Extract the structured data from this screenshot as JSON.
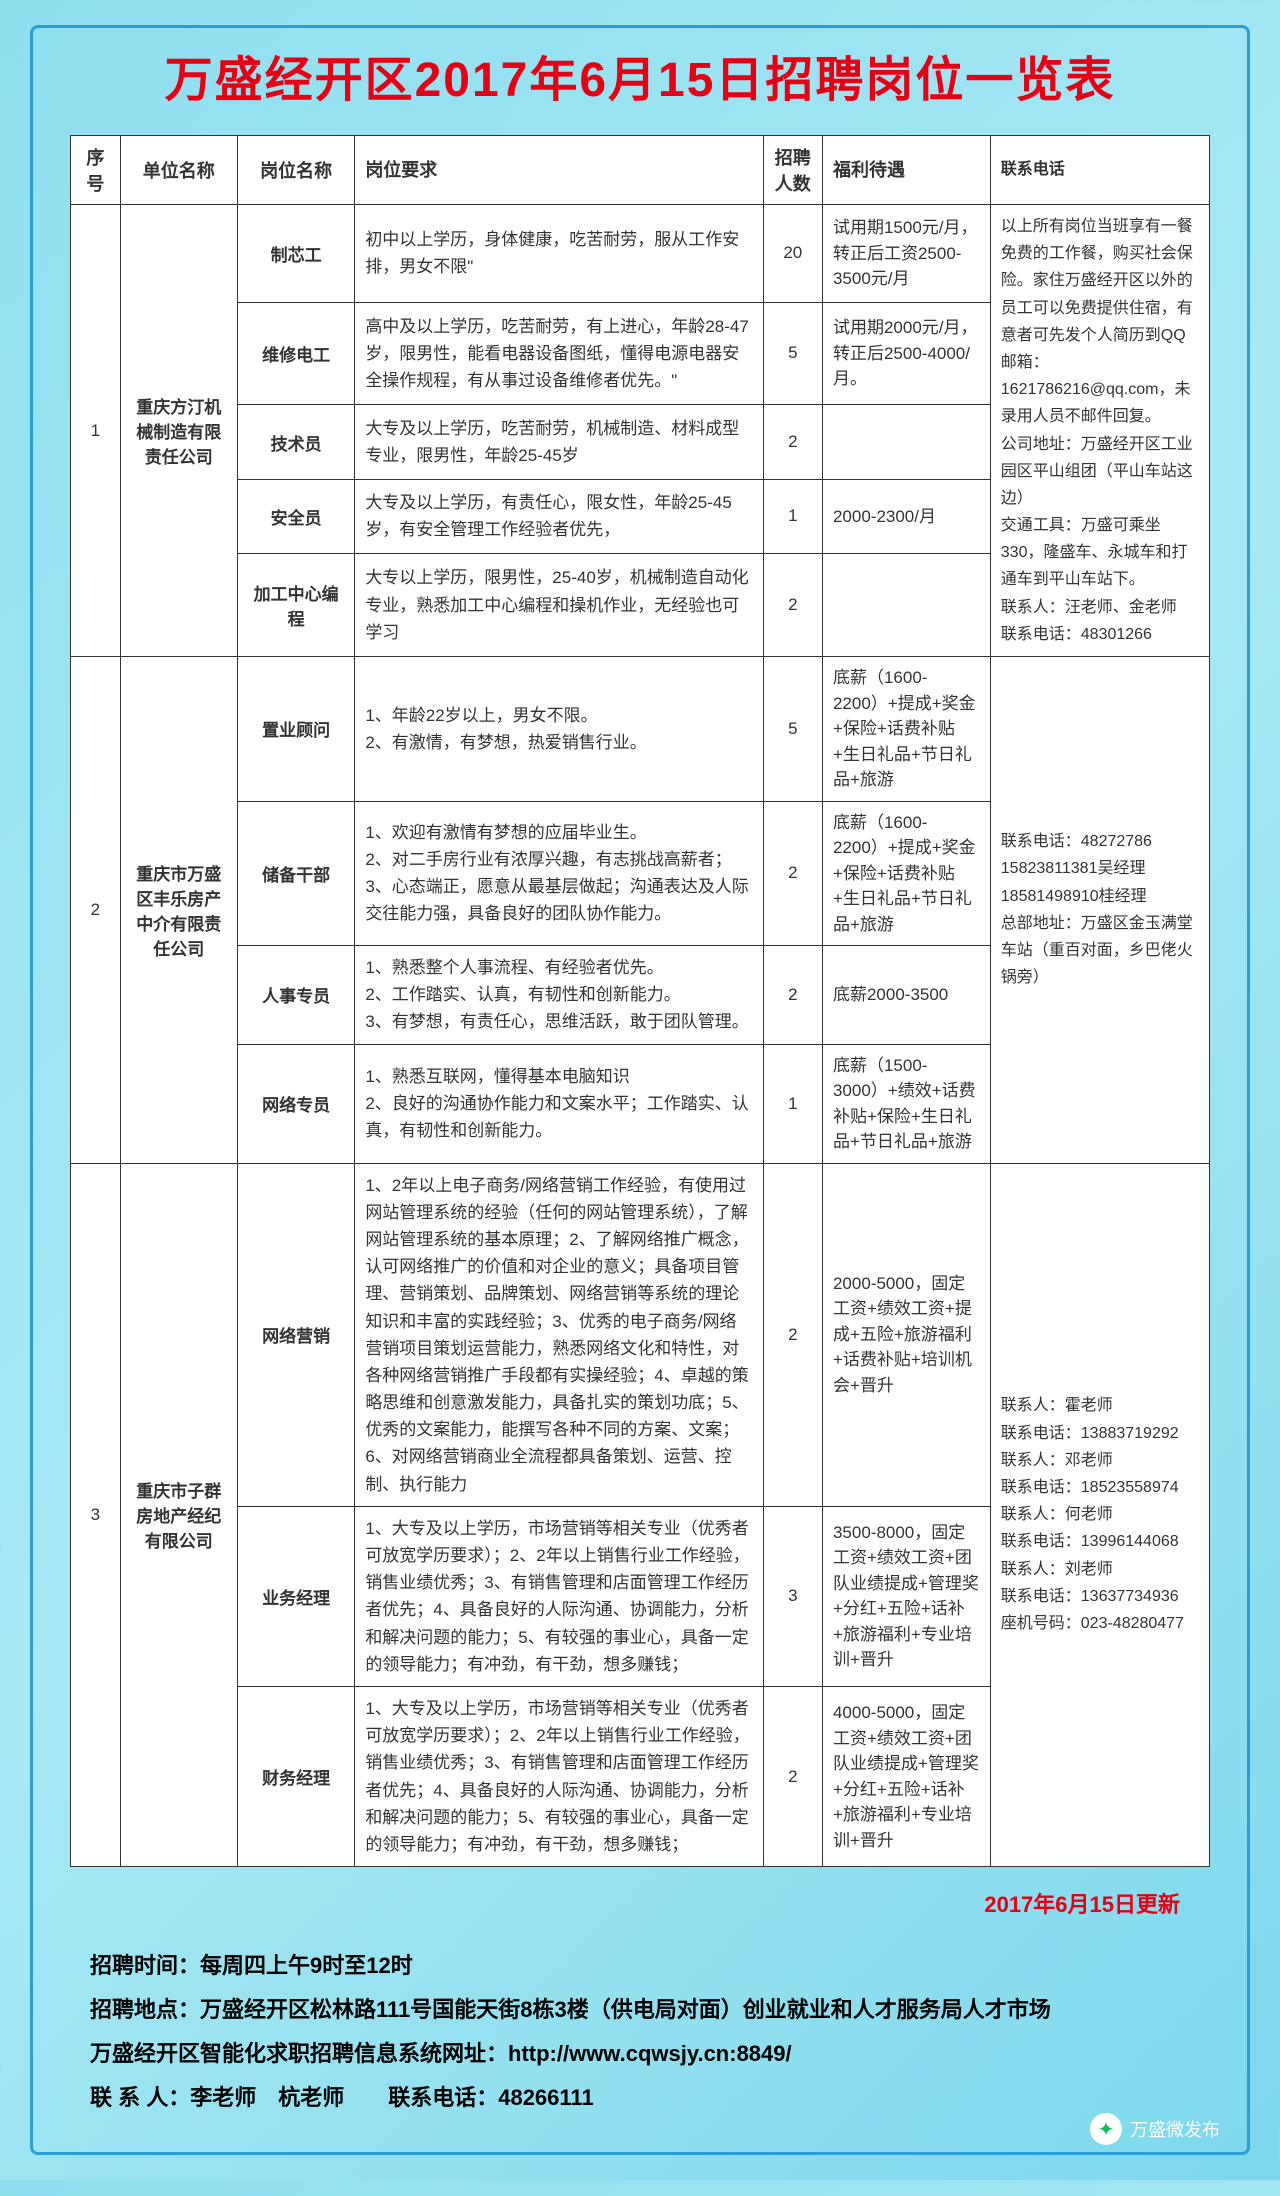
{
  "title": "万盛经开区2017年6月15日招聘岗位一览表",
  "headers": {
    "no": "序号",
    "company": "单位名称",
    "job": "岗位名称",
    "req": "岗位要求",
    "num": "招聘人数",
    "salary": "福利待遇",
    "contact": "联系电话"
  },
  "groups": [
    {
      "no": "1",
      "company": "重庆方汀机械制造有限责任公司",
      "contact": "以上所有岗位当班享有一餐免费的工作餐，购买社会保险。家住万盛经开区以外的员工可以免费提供住宿，有意者可先发个人简历到QQ邮箱：1621786216@qq.com，未录用人员不邮件回复。\n公司地址：万盛经开区工业园区平山组团（平山车站这边）\n交通工具：万盛可乘坐330，隆盛车、永城车和打通车到平山车站下。\n联系人：汪老师、金老师　　联系电话：48301266",
      "rows": [
        {
          "job": "制芯工",
          "req": "初中以上学历，身体健康，吃苦耐劳，服从工作安排，男女不限\"",
          "num": "20",
          "salary": "试用期1500元/月，转正后工资2500-3500元/月"
        },
        {
          "job": "维修电工",
          "req": "高中及以上学历，吃苦耐劳，有上进心，年龄28-47岁，限男性，能看电器设备图纸，懂得电源电器安全操作规程，有从事过设备维修者优先。\"",
          "num": "5",
          "salary": "试用期2000元/月，转正后2500-4000/月。"
        },
        {
          "job": "技术员",
          "req": "大专及以上学历，吃苦耐劳，机械制造、材料成型专业，限男性，年龄25-45岁",
          "num": "2",
          "salary": ""
        },
        {
          "job": "安全员",
          "req": "大专及以上学历，有责任心，限女性，年龄25-45岁，有安全管理工作经验者优先，",
          "num": "1",
          "salary": "2000-2300/月"
        },
        {
          "job": "加工中心编程",
          "req": "大专以上学历，限男性，25-40岁，机械制造自动化专业，熟悉加工中心编程和操机作业，无经验也可学习",
          "num": "2",
          "salary": ""
        }
      ]
    },
    {
      "no": "2",
      "company": "重庆市万盛区丰乐房产中介有限责任公司",
      "contact": "联系电话：48272786\n15823811381吴经理\n18581498910桂经理\n总部地址：万盛区金玉满堂车站（重百对面，乡巴佬火锅旁）",
      "rows": [
        {
          "job": "置业顾问",
          "req": "1、年龄22岁以上，男女不限。\n2、有激情，有梦想，热爱销售行业。",
          "num": "5",
          "salary": "底薪（1600-2200）+提成+奖金+保险+话费补贴+生日礼品+节日礼品+旅游"
        },
        {
          "job": "储备干部",
          "req": "1、欢迎有激情有梦想的应届毕业生。\n2、对二手房行业有浓厚兴趣，有志挑战高薪者；\n3、心态端正，愿意从最基层做起；沟通表达及人际交往能力强，具备良好的团队协作能力。",
          "num": "2",
          "salary": "底薪（1600-2200）+提成+奖金+保险+话费补贴+生日礼品+节日礼品+旅游"
        },
        {
          "job": "人事专员",
          "req": "1、熟悉整个人事流程、有经验者优先。\n2、工作踏实、认真，有韧性和创新能力。\n3、有梦想，有责任心，思维活跃，敢于团队管理。",
          "num": "2",
          "salary": "底薪2000-3500"
        },
        {
          "job": "网络专员",
          "req": "1、熟悉互联网，懂得基本电脑知识\n2、良好的沟通协作能力和文案水平；工作踏实、认真，有韧性和创新能力。",
          "num": "1",
          "salary": "底薪（1500-3000）+绩效+话费补贴+保险+生日礼品+节日礼品+旅游"
        }
      ]
    },
    {
      "no": "3",
      "company": "重庆市子群房地产经纪有限公司",
      "contact": "联系人：霍老师\n联系电话：13883719292\n联系人：邓老师\n联系电话：18523558974\n联系人：何老师\n联系电话：13996144068\n联系人：刘老师\n联系电话：13637734936\n座机号码：023-48280477",
      "rows": [
        {
          "job": "网络营销",
          "req": "1、2年以上电子商务/网络营销工作经验，有使用过网站管理系统的经验（任何的网站管理系统），了解网站管理系统的基本原理；2、了解网络推广概念，认可网络推广的价值和对企业的意义；具备项目管理、营销策划、品牌策划、网络营销等系统的理论知识和丰富的实践经验；3、优秀的电子商务/网络营销项目策划运营能力，熟悉网络文化和特性，对各种网络营销推广手段都有实操经验；4、卓越的策略思维和创意激发能力，具备扎实的策划功底；5、优秀的文案能力，能撰写各种不同的方案、文案；6、对网络营销商业全流程都具备策划、运营、控制、执行能力",
          "num": "2",
          "salary": "2000-5000，固定工资+绩效工资+提成+五险+旅游福利+话费补贴+培训机会+晋升"
        },
        {
          "job": "业务经理",
          "req": "1、大专及以上学历，市场营销等相关专业（优秀者可放宽学历要求）；2、2年以上销售行业工作经验，销售业绩优秀；3、有销售管理和店面管理工作经历者优先；4、具备良好的人际沟通、协调能力，分析和解决问题的能力；5、有较强的事业心，具备一定的领导能力；有冲劲，有干劲，想多赚钱；",
          "num": "3",
          "salary": "3500-8000，固定工资+绩效工资+团队业绩提成+管理奖+分红+五险+话补+旅游福利+专业培训+晋升"
        },
        {
          "job": "财务经理",
          "req": "1、大专及以上学历，市场营销等相关专业（优秀者可放宽学历要求）；2、2年以上销售行业工作经验，销售业绩优秀；3、有销售管理和店面管理工作经历者优先；4、具备良好的人际沟通、协调能力，分析和解决问题的能力；5、有较强的事业心，具备一定的领导能力；有冲劲，有干劲，想多赚钱；",
          "num": "2",
          "salary": "4000-5000，固定工资+绩效工资+团队业绩提成+管理奖+分红+五险+话补+旅游福利+专业培训+晋升"
        }
      ]
    }
  ],
  "update": "2017年6月15日更新",
  "footer": {
    "l1": "招聘时间：每周四上午9时至12时",
    "l2": "招聘地点：万盛经开区松林路111号国能天街8栋3楼（供电局对面）创业就业和人才服务局人才市场",
    "l3": "万盛经开区智能化求职招聘信息系统网址：http://www.cqwsjy.cn:8849/",
    "l4": "联 系 人：李老师　杭老师　　联系电话：48266111"
  },
  "wechat": "万盛微发布"
}
